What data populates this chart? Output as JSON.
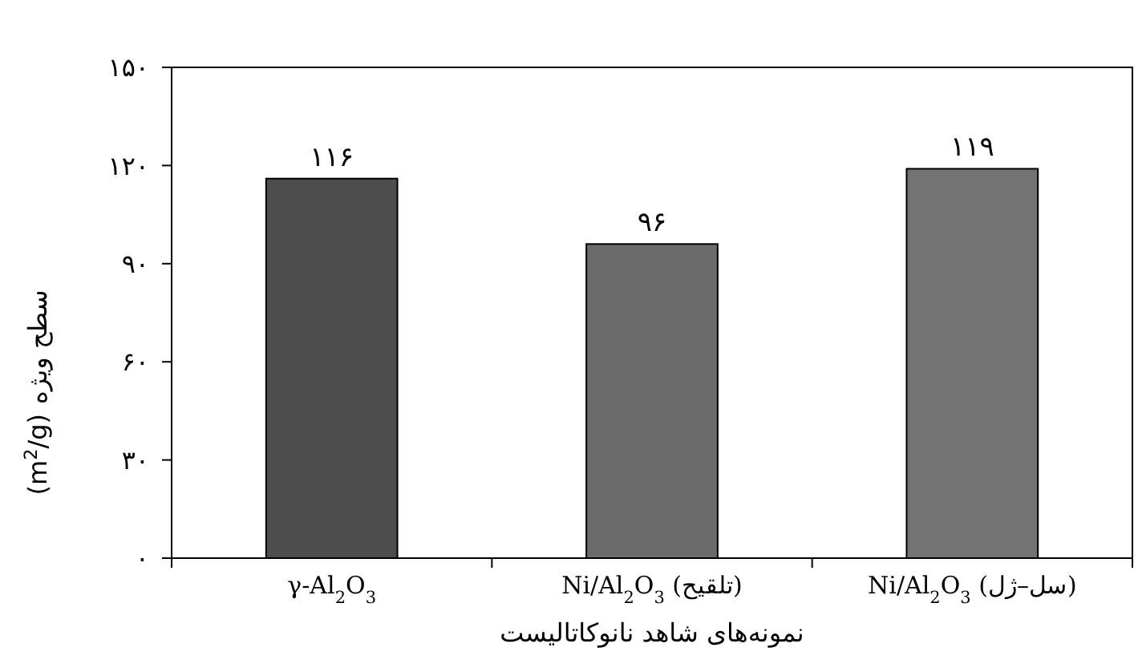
{
  "chart_data": {
    "type": "bar",
    "xlabel": "نمونه‌های شاهد نانوکاتالیست",
    "ylabel": "سطح ویژه (m$^{2}$/g)",
    "categories": [
      "γ-Al$_{2}$O$_{3}$",
      "Ni/Al$_{2}$O$_{3}$ (تلقیح)",
      "Ni/Al$_{2}$O$_{3}$ (سل–ژل)"
    ],
    "values": [
      116,
      96,
      119
    ],
    "colors": [
      "#4d4d4d",
      "#6b6b6b",
      "#737373"
    ],
    "value_labels": [
      "۱۱۶",
      "۹۶",
      "۱۱۹"
    ],
    "ylim": [
      0,
      150
    ],
    "yticks": [
      {
        "value": 0,
        "label": "۰"
      },
      {
        "value": 30,
        "label": "۳۰"
      },
      {
        "value": 60,
        "label": "۶۰"
      },
      {
        "value": 90,
        "label": "۹۰"
      },
      {
        "value": 120,
        "label": "۱۲۰"
      },
      {
        "value": 150,
        "label": "۱۵۰"
      }
    ],
    "grid": false
  }
}
